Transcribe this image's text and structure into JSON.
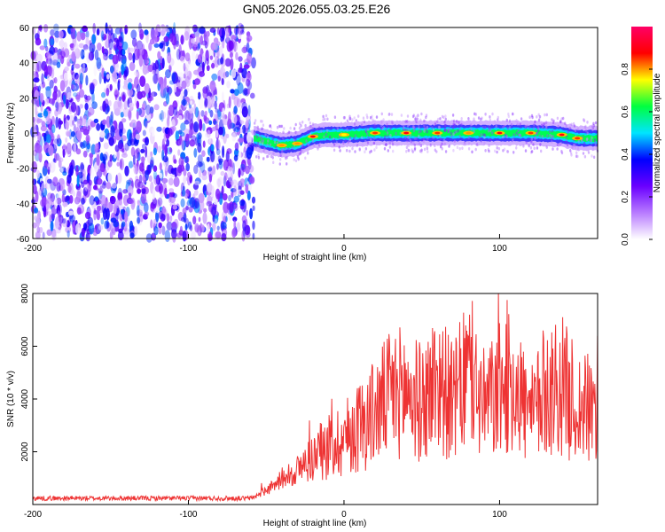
{
  "title": "GN05.2026.055.03.25.E26",
  "chart_data": [
    {
      "type": "heatmap",
      "title": "GN05.2026.055.03.25.E26",
      "xlabel": "Height of straight line (km)",
      "ylabel": "Frequency (Hz)",
      "xlim": [
        -200,
        163
      ],
      "ylim": [
        -60,
        60
      ],
      "x_ticks": [
        "-200",
        "-100",
        "0",
        "100"
      ],
      "y_ticks": [
        "-60",
        "-40",
        "-20",
        "0",
        "20",
        "40",
        "60"
      ],
      "colorbar": {
        "label": "Normalized spectral amplitude",
        "range": [
          0,
          1
        ],
        "ticks": [
          "0.0",
          "0.2",
          "0.4",
          "0.6",
          "0.8"
        ],
        "colormap": [
          "#ffffff",
          "#b87bff",
          "#6a00ff",
          "#0000ff",
          "#00e5ff",
          "#00ff40",
          "#ffff00",
          "#ff0000",
          "#ff0066"
        ]
      },
      "noise_region_x": [
        -200,
        -58
      ],
      "noise_amplitude": [
        0.0,
        0.45
      ],
      "signal_track": {
        "x": [
          -58,
          -50,
          -40,
          -30,
          -20,
          -10,
          0,
          20,
          40,
          60,
          80,
          100,
          120,
          140,
          150,
          163
        ],
        "y": [
          -3,
          -5,
          -7,
          -6,
          -2,
          -1,
          -1,
          0,
          0,
          0,
          0,
          0,
          0,
          -1,
          -3,
          -3
        ],
        "amplitude": [
          0.5,
          0.6,
          0.8,
          0.8,
          0.9,
          0.7,
          0.75,
          0.85,
          0.9,
          0.85,
          0.8,
          0.9,
          0.85,
          0.9,
          0.85,
          0.6
        ]
      }
    },
    {
      "type": "line",
      "xlabel": "Height of straight line (km)",
      "ylabel": "SNR (10 * v/v)",
      "xlim": [
        -200,
        163
      ],
      "ylim": [
        0,
        8000
      ],
      "x_ticks": [
        "-200",
        "-100",
        "0",
        "100"
      ],
      "y_ticks": [
        "2000",
        "4000",
        "6000",
        "8000"
      ],
      "color": "#ee3333",
      "series": [
        {
          "x": [
            -200,
            -150,
            -100,
            -60,
            -45,
            -40,
            -30,
            -20,
            -10,
            0,
            10,
            20,
            30,
            40,
            50,
            60,
            70,
            80,
            90,
            100,
            110,
            120,
            130,
            140,
            150,
            163
          ],
          "values": [
            200,
            200,
            200,
            200,
            700,
            1000,
            1300,
            1800,
            2200,
            2500,
            3000,
            3500,
            4200,
            4300,
            3800,
            4800,
            3800,
            5000,
            3700,
            4300,
            4700,
            3200,
            4400,
            4500,
            3700,
            3500
          ]
        }
      ]
    }
  ]
}
